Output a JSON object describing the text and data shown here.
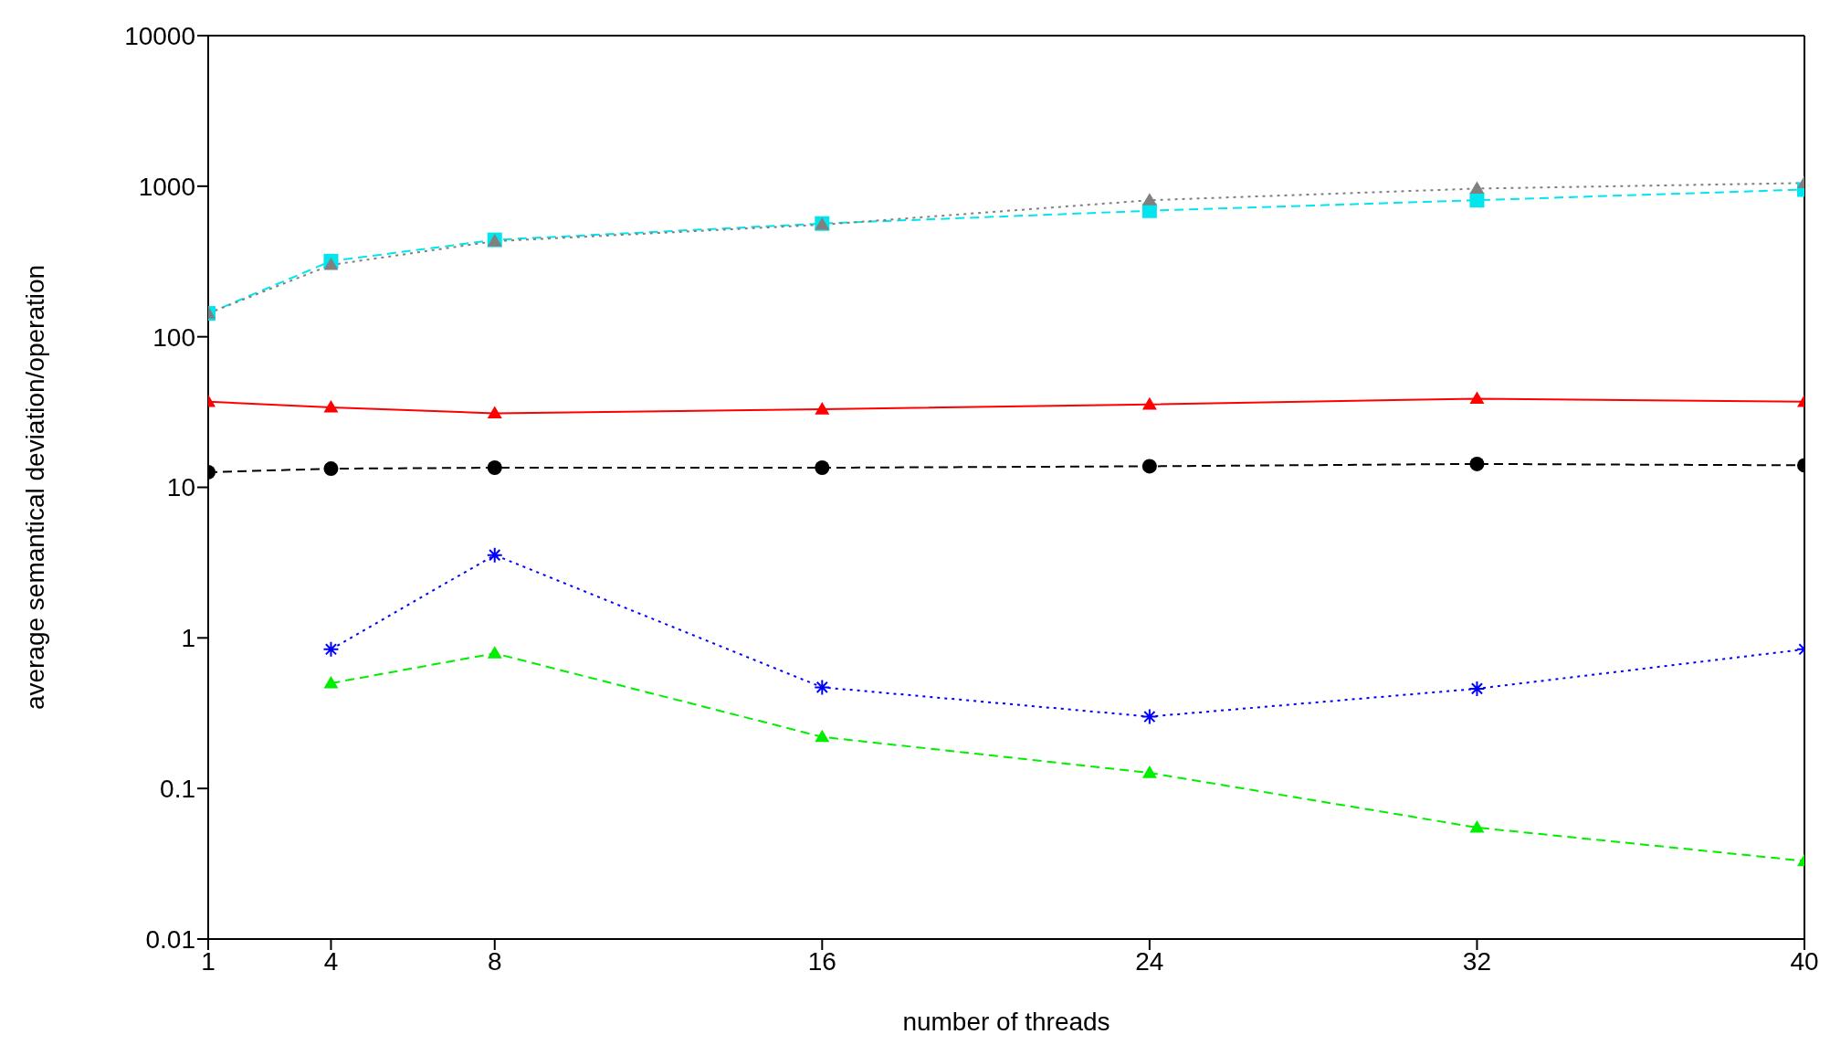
{
  "chart_data": {
    "type": "line",
    "xlabel": "number of threads",
    "ylabel": "average semantical deviation/operation",
    "log": "y",
    "grid": false,
    "x": [
      1,
      4,
      8,
      16,
      24,
      32,
      40
    ],
    "xlim": [
      1,
      40
    ],
    "xticks": [
      1,
      4,
      8,
      16,
      24,
      32,
      40
    ],
    "ylim": [
      0.01,
      10000
    ],
    "yticks": [
      0.01,
      0.1,
      1,
      10,
      100,
      1000,
      10000
    ],
    "series": [
      {
        "color": "#00e5ee",
        "marker": "square",
        "line_style": "dashed",
        "values": [
          143,
          318,
          440,
          565,
          687,
          807,
          950
        ]
      },
      {
        "color": "#808080",
        "marker": "triangle",
        "line_style": "dotted",
        "values": [
          143,
          300,
          431,
          555,
          807,
          964,
          1050
        ]
      },
      {
        "color": "#ff0000",
        "marker": "triangle",
        "line_style": "solid",
        "values": [
          37,
          34,
          31,
          33,
          35.5,
          38.8,
          37
        ]
      },
      {
        "color": "#000000",
        "marker": "circle",
        "line_style": "dashed",
        "values": [
          12.6,
          13.3,
          13.5,
          13.5,
          13.8,
          14.3,
          14
        ]
      },
      {
        "color": "#0000ff",
        "marker": "cross",
        "line_style": "dotted",
        "values": [
          null,
          0.84,
          3.55,
          0.47,
          0.3,
          0.46,
          0.84
        ]
      },
      {
        "color": "#00ee00",
        "marker": "triangle",
        "line_style": "dashed",
        "values": [
          null,
          0.5,
          0.79,
          0.22,
          0.127,
          0.055,
          0.033
        ]
      }
    ]
  }
}
